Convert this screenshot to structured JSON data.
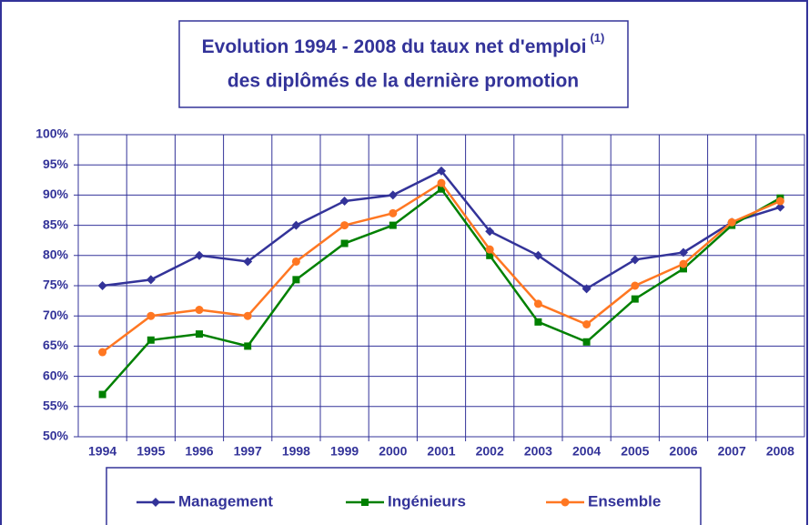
{
  "chart_data": {
    "type": "line",
    "title": [
      "Evolution 1994 - 2008 du taux net d'emploi",
      "des diplômés de la dernière promotion"
    ],
    "title_superscript": "(1)",
    "categories": [
      "1994",
      "1995",
      "1996",
      "1997",
      "1998",
      "1999",
      "2000",
      "2001",
      "2002",
      "2003",
      "2004",
      "2005",
      "2006",
      "2007",
      "2008"
    ],
    "series": [
      {
        "name": "Management",
        "color": "#333399",
        "marker": "diamond",
        "values": [
          75,
          76,
          80,
          79,
          85,
          89,
          90,
          94,
          84,
          80,
          74.5,
          79.3,
          80.5,
          85.5,
          88
        ]
      },
      {
        "name": "Ingénieurs",
        "color": "#008000",
        "marker": "square",
        "values": [
          57,
          66,
          67,
          65,
          76,
          82,
          85,
          91,
          80,
          69,
          65.7,
          72.8,
          77.8,
          85,
          89.5
        ]
      },
      {
        "name": "Ensemble",
        "color": "#ff7722",
        "marker": "circle",
        "values": [
          64,
          70,
          71,
          70,
          79,
          85,
          87,
          92,
          81,
          72,
          68.6,
          75,
          78.6,
          85.5,
          89
        ]
      }
    ],
    "ylim": [
      50,
      100
    ],
    "yticks": [
      {
        "value": 50,
        "label": "50%"
      },
      {
        "value": 55,
        "label": "55%"
      },
      {
        "value": 60,
        "label": "60%"
      },
      {
        "value": 65,
        "label": "65%"
      },
      {
        "value": 70,
        "label": "70%"
      },
      {
        "value": 75,
        "label": "75%"
      },
      {
        "value": 80,
        "label": "80%"
      },
      {
        "value": 85,
        "label": "85%"
      },
      {
        "value": 90,
        "label": "90%"
      },
      {
        "value": 95,
        "label": "95%"
      },
      {
        "value": 100,
        "label": "100%"
      }
    ],
    "grid": true,
    "legend": "bottom"
  }
}
